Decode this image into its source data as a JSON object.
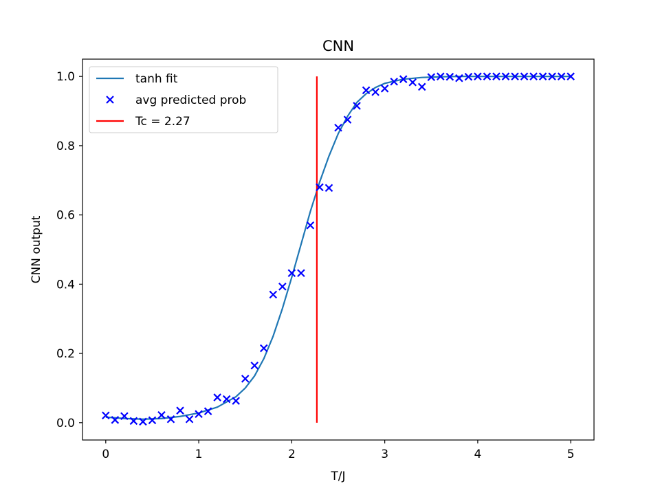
{
  "chart_data": {
    "type": "scatter",
    "title": "CNN",
    "xlabel": "T/J",
    "ylabel": "CNN output",
    "xlim": [
      -0.25,
      5.25
    ],
    "ylim": [
      -0.05,
      1.05
    ],
    "xticks": [
      0,
      1,
      2,
      3,
      4,
      5
    ],
    "yticks": [
      0.0,
      0.2,
      0.4,
      0.6,
      0.8,
      1.0
    ],
    "xtick_labels": [
      "0",
      "1",
      "2",
      "3",
      "4",
      "5"
    ],
    "ytick_labels": [
      "0.0",
      "0.2",
      "0.4",
      "0.6",
      "0.8",
      "1.0"
    ],
    "grid": false,
    "legend_position": "top-left",
    "series": [
      {
        "name": "tanh fit",
        "type": "line",
        "color": "#1f77b4",
        "x": [
          0.0,
          0.2,
          0.4,
          0.6,
          0.8,
          1.0,
          1.2,
          1.4,
          1.5,
          1.6,
          1.7,
          1.8,
          1.9,
          2.0,
          2.1,
          2.2,
          2.3,
          2.4,
          2.5,
          2.6,
          2.7,
          2.8,
          2.9,
          3.0,
          3.2,
          3.4,
          3.6,
          3.8,
          4.0,
          4.5,
          5.0
        ],
        "y": [
          0.016,
          0.012,
          0.01,
          0.012,
          0.018,
          0.028,
          0.045,
          0.075,
          0.1,
          0.135,
          0.185,
          0.25,
          0.33,
          0.42,
          0.515,
          0.61,
          0.695,
          0.77,
          0.835,
          0.885,
          0.925,
          0.95,
          0.968,
          0.98,
          0.992,
          0.997,
          0.999,
          1.0,
          1.0,
          1.0,
          1.0
        ]
      },
      {
        "name": "avg predicted prob",
        "type": "scatter",
        "marker": "x",
        "color": "#0000ff",
        "x": [
          0.0,
          0.1,
          0.2,
          0.3,
          0.4,
          0.5,
          0.6,
          0.7,
          0.8,
          0.9,
          1.0,
          1.1,
          1.2,
          1.3,
          1.4,
          1.5,
          1.6,
          1.7,
          1.8,
          1.9,
          2.0,
          2.1,
          2.2,
          2.3,
          2.4,
          2.5,
          2.6,
          2.7,
          2.8,
          2.9,
          3.0,
          3.1,
          3.2,
          3.3,
          3.4,
          3.5,
          3.6,
          3.7,
          3.8,
          3.9,
          4.0,
          4.1,
          4.2,
          4.3,
          4.4,
          4.5,
          4.6,
          4.7,
          4.8,
          4.9,
          5.0
        ],
        "y": [
          0.021,
          0.008,
          0.019,
          0.005,
          0.003,
          0.007,
          0.022,
          0.01,
          0.035,
          0.01,
          0.025,
          0.033,
          0.073,
          0.068,
          0.063,
          0.127,
          0.165,
          0.215,
          0.37,
          0.393,
          0.432,
          0.432,
          0.57,
          0.68,
          0.678,
          0.852,
          0.875,
          0.915,
          0.96,
          0.955,
          0.965,
          0.985,
          0.992,
          0.983,
          0.97,
          0.998,
          1.0,
          0.999,
          0.995,
          0.999,
          1.0,
          1.0,
          1.0,
          1.0,
          1.0,
          1.0,
          1.0,
          1.0,
          1.0,
          1.0,
          1.0
        ]
      },
      {
        "name": "Tc = 2.27",
        "type": "vline",
        "color": "#ff0000",
        "x": 2.27,
        "y_range": [
          0.0,
          1.0
        ]
      }
    ]
  }
}
